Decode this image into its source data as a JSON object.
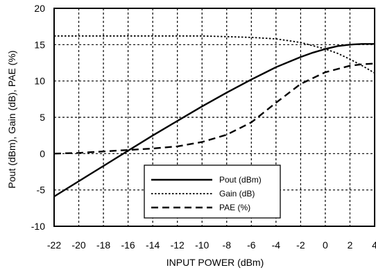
{
  "chart_data": {
    "type": "line",
    "title": "",
    "xlabel": "INPUT POWER (dBm)",
    "ylabel": "Pout (dBm), Gain (dB), PAE (%)",
    "xlim": [
      -22,
      4
    ],
    "ylim": [
      -10,
      20
    ],
    "xticks": [
      -22,
      -20,
      -18,
      -16,
      -14,
      -12,
      -10,
      -8,
      -6,
      -4,
      -2,
      0,
      2,
      4
    ],
    "yticks": [
      -10,
      -5,
      0,
      5,
      10,
      15,
      20
    ],
    "grid": true,
    "legend_position": "bottom-right",
    "series": [
      {
        "name": "Pout (dBm)",
        "style": "solid",
        "color": "#000000",
        "x": [
          -22,
          -20,
          -18,
          -16,
          -14,
          -12,
          -10,
          -8,
          -6,
          -4,
          -2,
          -1,
          0,
          1,
          2,
          3,
          4
        ],
        "y": [
          -5.9,
          -3.8,
          -1.7,
          0.4,
          2.5,
          4.5,
          6.5,
          8.4,
          10.2,
          11.9,
          13.3,
          13.9,
          14.4,
          14.8,
          15.0,
          15.1,
          15.1
        ]
      },
      {
        "name": "Gain (dB)",
        "style": "dotted",
        "color": "#000000",
        "x": [
          -22,
          -20,
          -18,
          -16,
          -14,
          -12,
          -10,
          -8,
          -6,
          -4,
          -2,
          0,
          1,
          2,
          3,
          4
        ],
        "y": [
          16.2,
          16.2,
          16.2,
          16.2,
          16.2,
          16.2,
          16.2,
          16.1,
          16.0,
          15.8,
          15.3,
          14.4,
          13.8,
          13.0,
          12.1,
          11.1
        ]
      },
      {
        "name": "PAE (%)",
        "style": "dashed",
        "color": "#000000",
        "x": [
          -22,
          -20,
          -18,
          -16,
          -14,
          -12,
          -10,
          -8,
          -6,
          -4,
          -2,
          0,
          2,
          3,
          4
        ],
        "y": [
          0.0,
          0.1,
          0.3,
          0.5,
          0.7,
          1.0,
          1.6,
          2.6,
          4.3,
          7.0,
          9.6,
          11.2,
          12.1,
          12.3,
          12.4
        ]
      }
    ]
  }
}
